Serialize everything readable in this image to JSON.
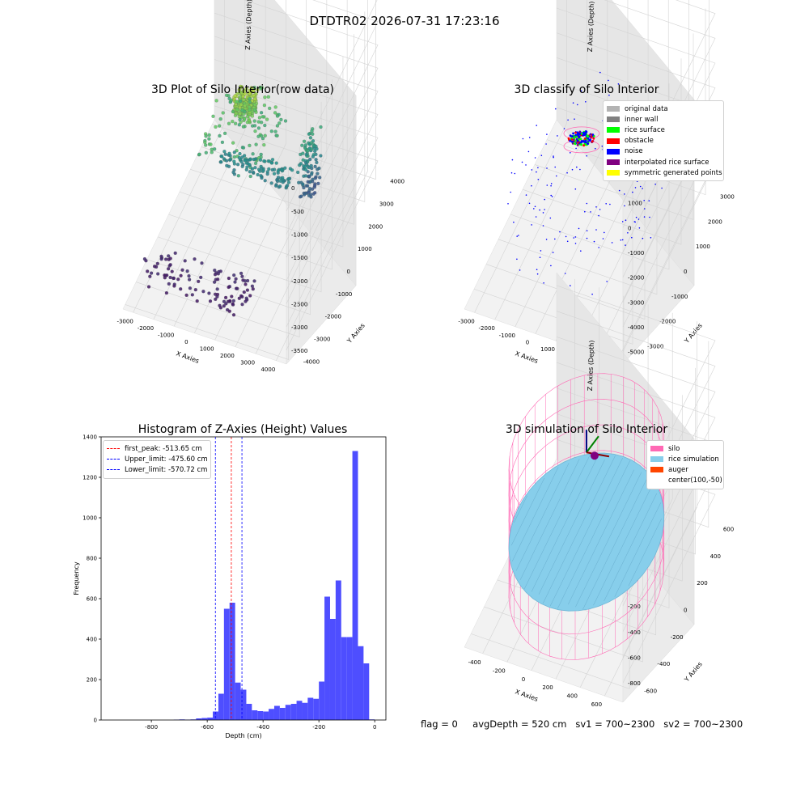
{
  "figure": {
    "suptitle": "DTDTR02 2026-07-31 17:23:16",
    "footer": {
      "flag": "flag = 0",
      "avg_depth": "avgDepth = 520 cm",
      "sv1": "sv1 = 700~2300",
      "sv2": "sv2 = 700~2300"
    }
  },
  "chart_data": [
    {
      "type": "scatter",
      "projection": "3d",
      "title": "3D Plot of Silo Interior(row data)",
      "xlabel": "X Axies",
      "ylabel": "Y Axies",
      "zlabel": "Z Axies (Depth)",
      "xticks": [
        -3000,
        -2000,
        -1000,
        0,
        1000,
        2000,
        3000,
        4000
      ],
      "yticks": [
        -4000,
        -3000,
        -2000,
        -1000,
        0,
        1000,
        2000,
        3000,
        4000
      ],
      "zticks": [
        0,
        -500,
        -1000,
        -1500,
        -2000,
        -2500,
        -3000,
        -3500
      ],
      "xlim": [
        -3500,
        4500
      ],
      "ylim": [
        -4200,
        4200
      ],
      "zlim": [
        -3800,
        300
      ],
      "colormap": "viridis",
      "clusters": [
        {
          "x": [
            -200,
            700
          ],
          "y": [
            -400,
            400
          ],
          "z": [
            -650,
            -1100
          ]
        },
        {
          "x": [
            -1300,
            1700
          ],
          "y": [
            -1500,
            1500
          ],
          "z": [
            -1100,
            -1700
          ]
        },
        {
          "x": [
            -900,
            2500
          ],
          "y": [
            -300,
            300
          ],
          "z": [
            -2000,
            -2300
          ]
        },
        {
          "x": [
            -3200,
            2000
          ],
          "y": [
            -3500,
            -2000
          ],
          "z": [
            -3300,
            -3600
          ]
        },
        {
          "x": [
            2600,
            3200
          ],
          "y": [
            300,
            1500
          ],
          "z": [
            -1600,
            -2900
          ]
        }
      ]
    },
    {
      "type": "scatter",
      "projection": "3d",
      "title": "3D classify of Silo Interior",
      "xlabel": "X Axies",
      "ylabel": "Y Axies",
      "zlabel": "Z Axies (Depth)",
      "xticks": [
        -3000,
        -2000,
        -1000,
        0,
        1000,
        2000,
        3000,
        4000
      ],
      "yticks": [
        -3000,
        -2000,
        -1000,
        0,
        1000,
        2000,
        3000
      ],
      "zticks": [
        1000,
        0,
        -1000,
        -2000,
        -3000,
        -4000,
        -5000
      ],
      "xlim": [
        -3500,
        4300
      ],
      "ylim": [
        -3800,
        3800
      ],
      "zlim": [
        -5500,
        2000
      ],
      "legend": {
        "placement": "top-right",
        "entries": [
          {
            "label": "original data",
            "color": "#b3b3b3"
          },
          {
            "label": "inner wall",
            "color": "#808080"
          },
          {
            "label": "rice surface",
            "color": "#00ff00"
          },
          {
            "label": "obstacle",
            "color": "#ff0000"
          },
          {
            "label": "noise",
            "color": "#0000ff"
          },
          {
            "label": "interpolated rice surface",
            "color": "#800080"
          },
          {
            "label": "symmetric generated points",
            "color": "#ffff00"
          }
        ]
      }
    },
    {
      "type": "bar",
      "title": "Histogram of Z-Axies (Height) Values",
      "xlabel": "Depth (cm)",
      "ylabel": "Frequency",
      "xlim": [
        -980,
        40
      ],
      "ylim": [
        0,
        1400
      ],
      "xticks": [
        -800,
        -600,
        -400,
        -200,
        0
      ],
      "yticks": [
        0,
        200,
        400,
        600,
        800,
        1000,
        1200,
        1400
      ],
      "bar_color": "#4a4aff",
      "bin_width": 20,
      "bins_start": [
        -720,
        -700,
        -680,
        -660,
        -640,
        -620,
        -600,
        -580,
        -560,
        -540,
        -520,
        -500,
        -480,
        -460,
        -440,
        -420,
        -400,
        -380,
        -360,
        -340,
        -320,
        -300,
        -280,
        -260,
        -240,
        -220,
        -200,
        -180,
        -160,
        -140,
        -120,
        -100,
        -80,
        -60,
        -40,
        -20
      ],
      "values": [
        2,
        3,
        2,
        3,
        8,
        10,
        12,
        42,
        130,
        550,
        580,
        185,
        150,
        80,
        48,
        44,
        42,
        55,
        70,
        60,
        75,
        80,
        95,
        85,
        110,
        105,
        190,
        610,
        500,
        690,
        410,
        410,
        1330,
        365,
        280,
        3
      ],
      "vlines": [
        {
          "x": -513.65,
          "label": "first_peak: -513.65 cm",
          "color": "#ff0000"
        },
        {
          "x": -475.6,
          "label": "Upper_limit: -475.60 cm",
          "color": "#0000ff"
        },
        {
          "x": -570.72,
          "label": "Lower_limit: -570.72 cm",
          "color": "#0000ff"
        }
      ],
      "legend": {
        "placement": "top-left"
      }
    },
    {
      "type": "surface",
      "projection": "3d",
      "title": "3D simulation of Silo Interior",
      "xlabel": "X Axies",
      "ylabel": "Y Axies",
      "zlabel": "Z Axies (Depth)",
      "xticks": [
        -400,
        -200,
        0,
        200,
        400,
        600
      ],
      "yticks": [
        -600,
        -400,
        -200,
        0,
        200,
        400,
        600
      ],
      "zticks": [
        400,
        200,
        0,
        -200,
        -400,
        -600,
        -800
      ],
      "xlim": [
        -550,
        750
      ],
      "ylim": [
        -700,
        700
      ],
      "zlim": [
        -950,
        500
      ],
      "legend": {
        "placement": "top-right",
        "entries": [
          {
            "label": "silo",
            "color": "#ff69b4"
          },
          {
            "label": "rice simulation",
            "color": "#87ceeb"
          },
          {
            "label": "auger",
            "color": "#ff4500"
          },
          {
            "label": "center(100,-50)",
            "color": ""
          }
        ]
      }
    }
  ]
}
